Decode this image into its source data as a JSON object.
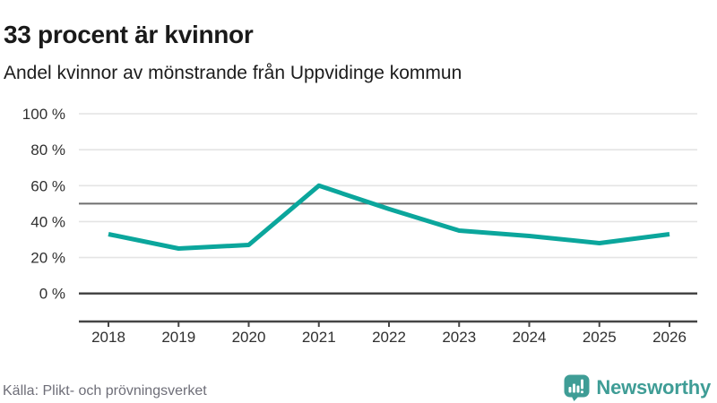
{
  "header": {
    "title": "33 procent är kvinnor",
    "subtitle": "Andel kvinnor av mönstrande från Uppvidinge kommun"
  },
  "chart_data": {
    "type": "line",
    "title": "33 procent är kvinnor",
    "subtitle": "Andel kvinnor av mönstrande från Uppvidinge kommun",
    "x": [
      "2018",
      "2019",
      "2020",
      "2021",
      "2022",
      "2023",
      "2024",
      "2025",
      "2026"
    ],
    "series": [
      {
        "name": "Andel kvinnor av mönstrande",
        "values": [
          33,
          25,
          27,
          60,
          47,
          35,
          32,
          28,
          33
        ],
        "color": "#0ba69c"
      }
    ],
    "unit": "%",
    "ylim": [
      0,
      100
    ],
    "yticks": [
      {
        "value": 100,
        "label": "100 %"
      },
      {
        "value": 80,
        "label": "80 %"
      },
      {
        "value": 60,
        "label": "60 %"
      },
      {
        "value": 40,
        "label": "40 %"
      },
      {
        "value": 20,
        "label": "20 %"
      },
      {
        "value": 0,
        "label": "0 %"
      }
    ],
    "reference_line": 50,
    "grid": "horizontal",
    "legend": "none"
  },
  "footer": {
    "source": "Källa: Plikt- och prövningsverket",
    "brand": "Newsworthy",
    "brand_color": "#3f9d96"
  },
  "icons": {
    "logo": "newsworthy-speech-bubble-barchart-icon"
  }
}
